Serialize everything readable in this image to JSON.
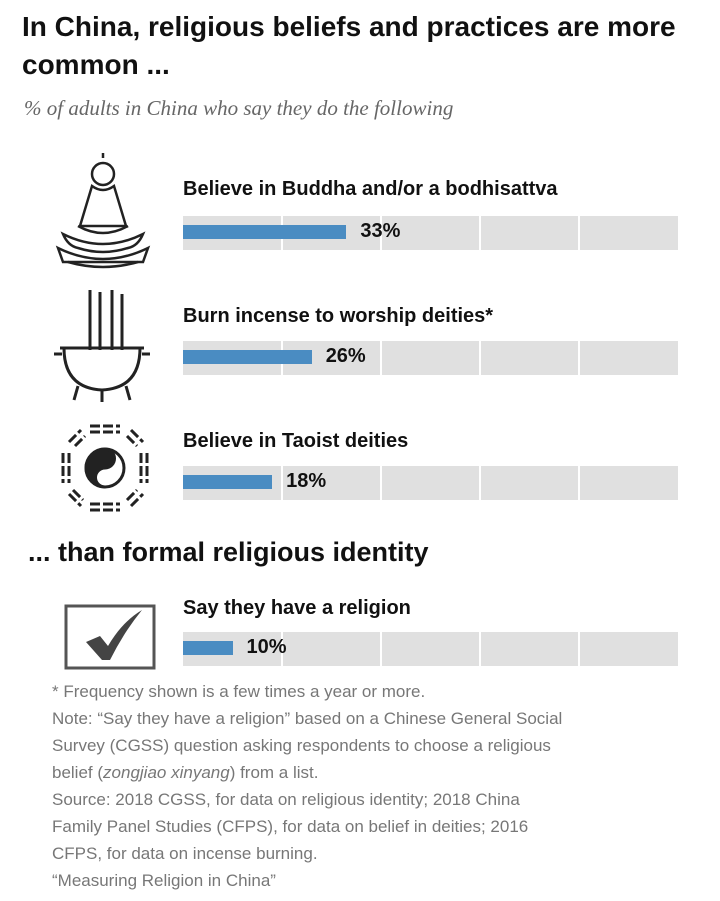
{
  "title": "In China, religious beliefs and practices are more common ...",
  "subtitle": "% of adults in China who say they do the following",
  "heading2": "... than formal religious identity",
  "chart_data": {
    "type": "bar",
    "orientation": "horizontal",
    "xlim": [
      0,
      100
    ],
    "grid": true,
    "categories": [
      "Believe in Buddha and/or a bodhisattva",
      "Burn incense to worship deities*",
      "Believe in Taoist deities",
      "Say they have a religion"
    ],
    "values": [
      33,
      26,
      18,
      10
    ],
    "value_labels": [
      "33%",
      "26%",
      "18%",
      "10%"
    ],
    "icons": [
      "buddha-icon",
      "incense-burner-icon",
      "yin-yang-bagua-icon",
      "checkbox-check-icon"
    ],
    "bar_color": "#4a8cc2",
    "track_color": "#e0e0e0"
  },
  "notes": {
    "footnote": "* Frequency shown is a few times a year or more.",
    "note_lines": [
      "Note: “Say they have a religion” based on a Chinese General Social",
      "Survey (CGSS) question asking respondents to choose a religious"
    ],
    "note_last_pre": "belief (",
    "note_last_italic": "zongjiao xinyang",
    "note_last_post": ") from a list.",
    "source_lines": [
      "Source: 2018 CGSS, for data on religious identity; 2018 China",
      "Family Panel Studies (CFPS), for data on belief in deities; 2016",
      "CFPS, for data on incense burning."
    ],
    "report": "“Measuring Religion in China”"
  }
}
